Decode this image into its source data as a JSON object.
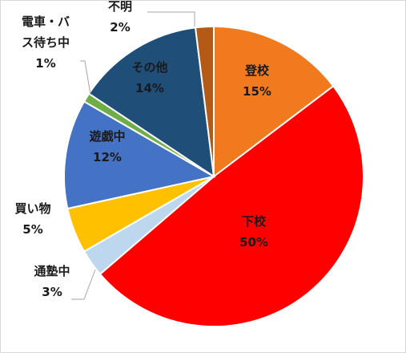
{
  "chart_data": {
    "type": "pie",
    "title": "",
    "slices": [
      {
        "label": "登校",
        "value": 15,
        "pct_label": "15%",
        "color": "#F07A1D"
      },
      {
        "label": "下校",
        "value": 50,
        "pct_label": "50%",
        "color": "#FF0000"
      },
      {
        "label": "通塾中",
        "value": 3,
        "pct_label": "3%",
        "color": "#BDD7EE"
      },
      {
        "label": "買い物",
        "value": 5,
        "pct_label": "5%",
        "color": "#FFC000"
      },
      {
        "label": "遊戯中",
        "value": 12,
        "pct_label": "12%",
        "color": "#4472C4"
      },
      {
        "label": "電車・バス待ち中",
        "label_lines": [
          "電車・バ",
          "ス待ち中"
        ],
        "value": 1,
        "pct_label": "1%",
        "color": "#70AD47"
      },
      {
        "label": "その他",
        "value": 14,
        "pct_label": "14%",
        "color": "#1F4E79"
      },
      {
        "label": "不明",
        "value": 2,
        "pct_label": "2%",
        "color": "#B55A16"
      }
    ],
    "legend": "none",
    "data_labels": "category and percent"
  }
}
